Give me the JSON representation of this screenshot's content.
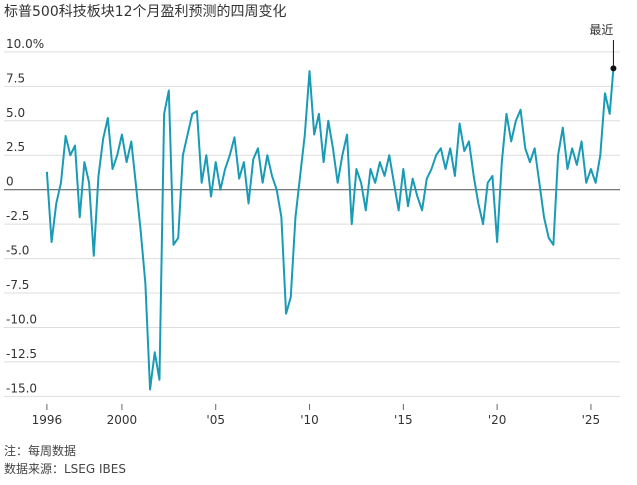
{
  "chart_data": {
    "type": "line",
    "title": "标普500科技板块12个月盈利预测的四周变化",
    "notes": [
      "注：每周数据",
      "数据来源：LSEG IBES"
    ],
    "annotation": "最近",
    "color": "#1a9bb5",
    "grid": true,
    "xlim": [
      1995.1,
      2026.55
    ],
    "ylim": [
      -15.7,
      10.5
    ],
    "xticks": [
      1996,
      2000,
      {
        "value": 2005,
        "label": "'05"
      },
      {
        "value": 2010,
        "label": "'10"
      },
      {
        "value": 2015,
        "label": "'15"
      },
      {
        "value": 2020,
        "label": "'20"
      },
      {
        "value": 2025,
        "label": "'25"
      }
    ],
    "yticks": [
      {
        "value": 10,
        "label": "10.0%"
      },
      7.5,
      {
        "value": 5,
        "label": "5.0"
      },
      2.5,
      0,
      -2.5,
      {
        "value": -5,
        "label": "-5.0"
      },
      -7.5,
      {
        "value": -10,
        "label": "-10.0"
      },
      -12.5,
      {
        "value": -15,
        "label": "-15.0"
      }
    ],
    "x": [
      1996,
      1996.25,
      1996.5,
      1996.75,
      1997,
      1997.25,
      1997.5,
      1997.75,
      1998,
      1998.25,
      1998.5,
      1998.75,
      1999,
      1999.25,
      1999.5,
      1999.75,
      2000,
      2000.25,
      2000.5,
      2000.75,
      2001,
      2001.25,
      2001.5,
      2001.75,
      2002,
      2002.25,
      2002.5,
      2002.75,
      2003,
      2003.25,
      2003.5,
      2003.75,
      2004,
      2004.25,
      2004.5,
      2004.75,
      2005,
      2005.25,
      2005.5,
      2005.75,
      2006,
      2006.25,
      2006.5,
      2006.75,
      2007,
      2007.25,
      2007.5,
      2007.75,
      2008,
      2008.25,
      2008.5,
      2008.75,
      2009,
      2009.25,
      2009.5,
      2009.75,
      2010,
      2010.25,
      2010.5,
      2010.75,
      2011,
      2011.25,
      2011.5,
      2011.75,
      2012,
      2012.25,
      2012.5,
      2012.75,
      2013,
      2013.25,
      2013.5,
      2013.75,
      2014,
      2014.25,
      2014.5,
      2014.75,
      2015,
      2015.25,
      2015.5,
      2015.75,
      2016,
      2016.25,
      2016.5,
      2016.75,
      2017,
      2017.25,
      2017.5,
      2017.75,
      2018,
      2018.25,
      2018.5,
      2018.75,
      2019,
      2019.25,
      2019.5,
      2019.75,
      2020,
      2020.25,
      2020.5,
      2020.75,
      2021,
      2021.25,
      2021.5,
      2021.75,
      2022,
      2022.25,
      2022.5,
      2022.75,
      2023,
      2023.25,
      2023.5,
      2023.75,
      2024,
      2024.25,
      2024.5,
      2024.75,
      2025,
      2025.25,
      2025.5,
      2025.75,
      2026,
      2026.2
    ],
    "values": [
      1.3,
      -3.8,
      -1.0,
      0.5,
      3.9,
      2.5,
      3.2,
      -2.0,
      2.0,
      0.5,
      -4.8,
      1.0,
      3.7,
      5.2,
      1.5,
      2.5,
      4.0,
      2.0,
      3.5,
      0.3,
      -3.0,
      -6.8,
      -14.5,
      -11.8,
      -13.8,
      5.5,
      7.2,
      -4.0,
      -3.5,
      2.5,
      4.0,
      5.5,
      5.7,
      0.5,
      2.5,
      -0.5,
      2.0,
      0.0,
      1.5,
      2.5,
      3.8,
      0.8,
      2.0,
      -1.0,
      2.2,
      3.0,
      0.5,
      2.5,
      1.0,
      0.0,
      -2.0,
      -9.0,
      -7.8,
      -2.0,
      1.0,
      4.0,
      8.6,
      4.0,
      5.5,
      2.0,
      5.0,
      3.0,
      0.5,
      2.5,
      4.0,
      -2.5,
      1.5,
      0.5,
      -1.5,
      1.5,
      0.5,
      2.0,
      1.0,
      2.5,
      0.5,
      -1.5,
      1.5,
      -1.2,
      0.8,
      -0.5,
      -1.5,
      0.8,
      1.5,
      2.5,
      3.0,
      1.5,
      3.0,
      1.0,
      4.8,
      2.8,
      3.5,
      1.0,
      -1.0,
      -2.5,
      0.5,
      1.0,
      -3.8,
      2.0,
      5.5,
      3.5,
      5.0,
      5.8,
      3.0,
      2.0,
      3.0,
      0.5,
      -2.0,
      -3.5,
      -4.0,
      2.5,
      4.5,
      1.5,
      3.0,
      1.8,
      3.5,
      0.5,
      1.5,
      0.5,
      2.5,
      7.0,
      5.5,
      8.8
    ]
  }
}
